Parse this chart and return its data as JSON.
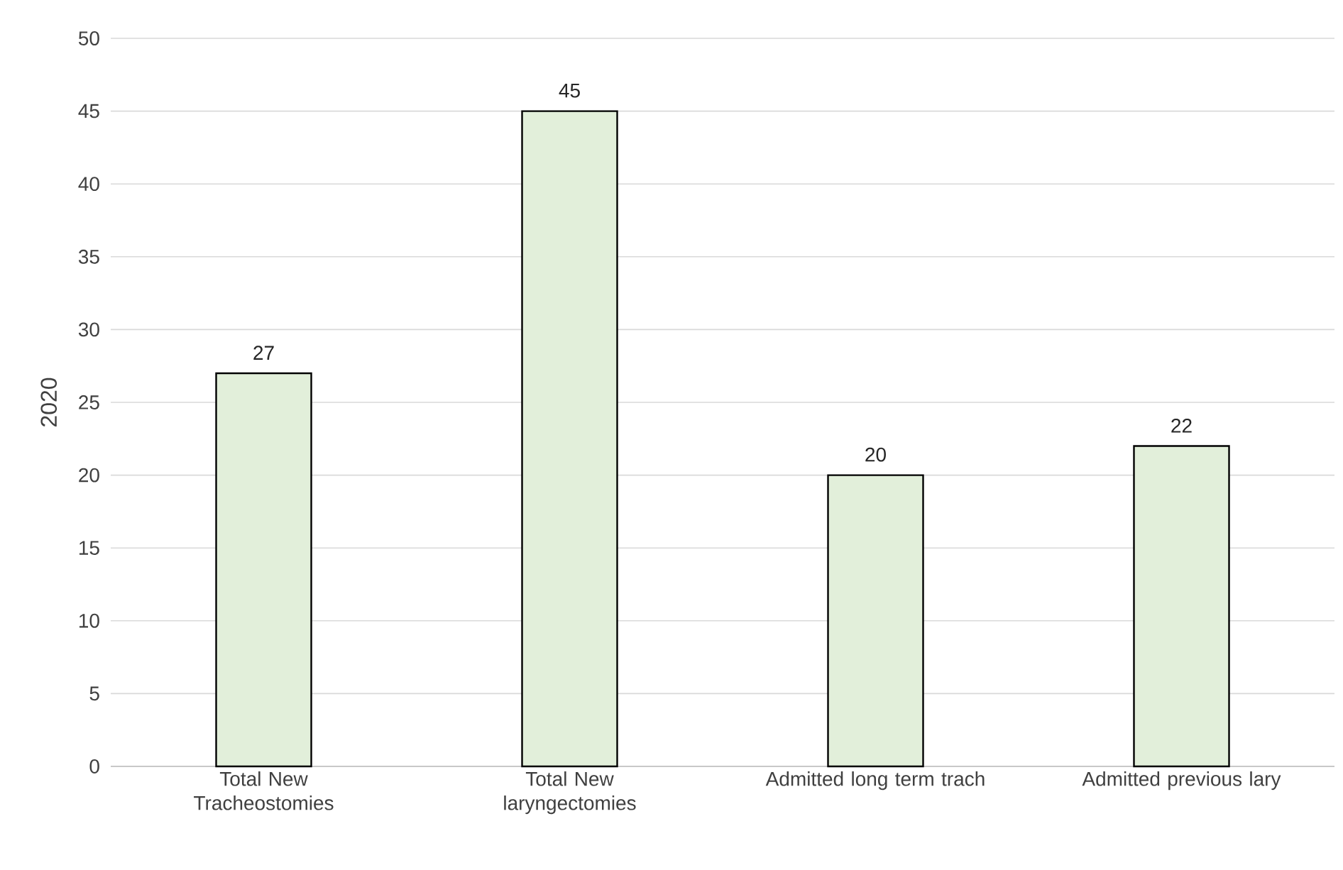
{
  "chart_data": {
    "type": "bar",
    "ylabel": "2020",
    "categories": [
      "Total New Tracheostomies",
      "Total New laryngectomies",
      "Admitted long term trach",
      "Admitted previous lary"
    ],
    "values": [
      27,
      45,
      20,
      22
    ],
    "color": "#e2efda",
    "ylim": [
      0,
      50
    ],
    "yticks": [
      0,
      5,
      10,
      15,
      20,
      25,
      30,
      35,
      40,
      45,
      50
    ],
    "grid": "y",
    "data_labels": true
  }
}
